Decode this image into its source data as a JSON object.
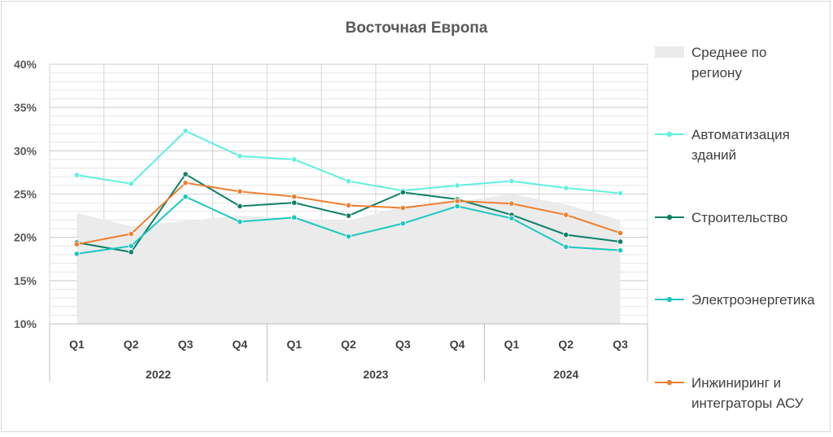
{
  "chart_data": {
    "type": "line",
    "title": "Восточная Европа",
    "xlabel": "",
    "ylabel": "",
    "ylim": [
      0.1,
      0.4
    ],
    "yticks": [
      0.1,
      0.15,
      0.2,
      0.25,
      0.3,
      0.35,
      0.4
    ],
    "ytick_labels": [
      "10%",
      "15%",
      "20%",
      "25%",
      "30%",
      "35%",
      "40%"
    ],
    "grid": true,
    "legend_position": "right",
    "categories": [
      "Q1",
      "Q2",
      "Q3",
      "Q4",
      "Q1",
      "Q2",
      "Q3",
      "Q4",
      "Q1",
      "Q2",
      "Q3"
    ],
    "years": [
      {
        "label": "2022",
        "count": 4
      },
      {
        "label": "2023",
        "count": 4
      },
      {
        "label": "2024",
        "count": 3
      }
    ],
    "series": [
      {
        "name": "Среднее по регион­у",
        "name_lines": [
          "Среднее по",
          "региону"
        ],
        "kind": "area",
        "color": "#ebebeb",
        "values": [
          0.228,
          0.213,
          0.219,
          0.225,
          0.222,
          0.219,
          0.236,
          0.241,
          0.25,
          0.238,
          0.22
        ]
      },
      {
        "name": "Автоматизация зданий",
        "name_lines": [
          "Автоматизация",
          "зданий"
        ],
        "kind": "line",
        "color": "#5ff0e0",
        "values": [
          0.272,
          0.262,
          0.323,
          0.294,
          0.29,
          0.265,
          0.254,
          0.26,
          0.265,
          0.257,
          0.251
        ]
      },
      {
        "name": "Строительство",
        "name_lines": [
          "Строительство"
        ],
        "kind": "line",
        "color": "#0e8068",
        "values": [
          0.194,
          0.183,
          0.273,
          0.236,
          0.24,
          0.225,
          0.252,
          0.244,
          0.226,
          0.203,
          0.195
        ]
      },
      {
        "name": "Электроэнергетика",
        "name_lines": [
          "Электроэнергетика"
        ],
        "kind": "line",
        "color": "#1cc8c0",
        "values": [
          0.181,
          0.19,
          0.247,
          0.218,
          0.223,
          0.201,
          0.216,
          0.236,
          0.222,
          0.189,
          0.185
        ]
      },
      {
        "name": "Инжиниринг и интеграторы АСУ",
        "name_lines": [
          "Инжиниринг и",
          "интеграторы АСУ"
        ],
        "kind": "line",
        "color": "#ee7f30",
        "values": [
          0.192,
          0.204,
          0.263,
          0.253,
          0.247,
          0.237,
          0.234,
          0.242,
          0.239,
          0.226,
          0.205
        ]
      }
    ]
  }
}
